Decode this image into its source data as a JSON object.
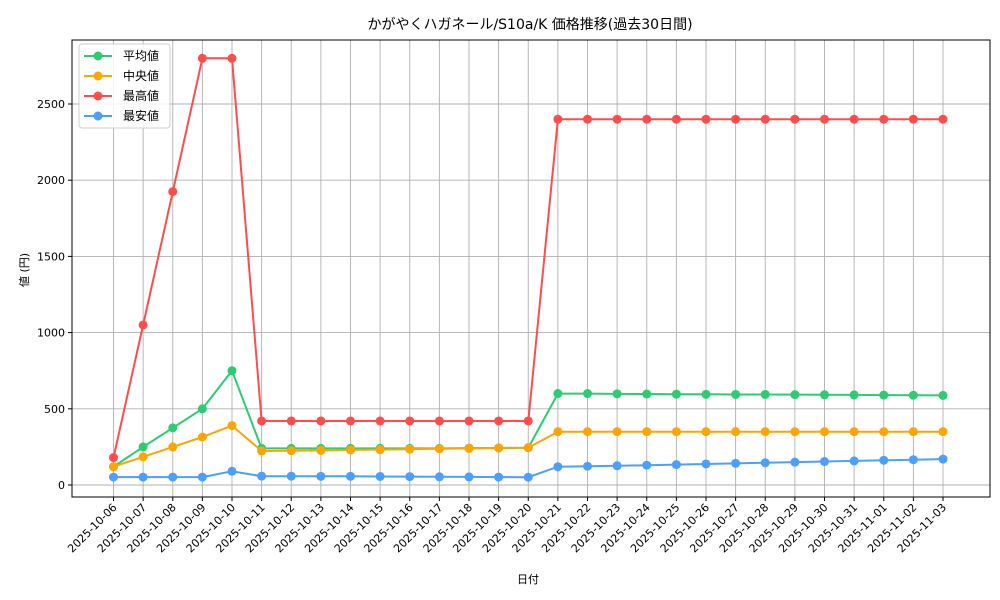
{
  "chart_data": {
    "type": "line",
    "title": "かがやくハガネール/S10a/K 価格推移(過去30日間)",
    "xlabel": "日付",
    "ylabel": "値 (円)",
    "ylim": [
      -80,
      2900
    ],
    "yticks": [
      0,
      500,
      1000,
      1500,
      2000,
      2500
    ],
    "grid": true,
    "legend_position": "upper left",
    "x": [
      "2025-10-06",
      "2025-10-07",
      "2025-10-08",
      "2025-10-09",
      "2025-10-10",
      "2025-10-11",
      "2025-10-12",
      "2025-10-13",
      "2025-10-14",
      "2025-10-15",
      "2025-10-16",
      "2025-10-17",
      "2025-10-18",
      "2025-10-19",
      "2025-10-20",
      "2025-10-21",
      "2025-10-22",
      "2025-10-23",
      "2025-10-24",
      "2025-10-25",
      "2025-10-26",
      "2025-10-27",
      "2025-10-28",
      "2025-10-29",
      "2025-10-30",
      "2025-10-31",
      "2025-11-01",
      "2025-11-02",
      "2025-11-03"
    ],
    "series": [
      {
        "name": "平均値",
        "color": "#2ecc71",
        "values": [
          120,
          250,
          375,
          500,
          750,
          240,
          240,
          240,
          240,
          240,
          240,
          240,
          242,
          243,
          245,
          600,
          600,
          598,
          597,
          596,
          595,
          594,
          594,
          593,
          592,
          591,
          590,
          589,
          588
        ]
      },
      {
        "name": "中央値",
        "color": "#ffa500",
        "values": [
          120,
          185,
          250,
          315,
          390,
          223,
          225,
          227,
          230,
          232,
          235,
          238,
          240,
          243,
          245,
          350,
          350,
          350,
          350,
          350,
          350,
          350,
          350,
          350,
          350,
          350,
          350,
          350,
          350
        ]
      },
      {
        "name": "最高値",
        "color": "#ff4d4d",
        "values": [
          180,
          1050,
          1925,
          2800,
          2800,
          420,
          420,
          420,
          420,
          420,
          420,
          420,
          420,
          420,
          420,
          2400,
          2400,
          2400,
          2400,
          2400,
          2400,
          2400,
          2400,
          2400,
          2400,
          2400,
          2400,
          2400,
          2400
        ]
      },
      {
        "name": "最安値",
        "color": "#4d9fff",
        "values": [
          52,
          52,
          52,
          52,
          90,
          58,
          58,
          57,
          57,
          56,
          55,
          54,
          53,
          52,
          51,
          120,
          123,
          126,
          130,
          134,
          138,
          142,
          146,
          150,
          154,
          158,
          162,
          166,
          170
        ]
      }
    ]
  }
}
